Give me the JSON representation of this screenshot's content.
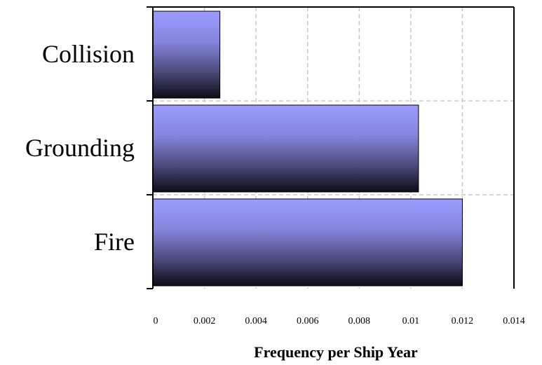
{
  "chart_data": {
    "type": "bar",
    "orientation": "horizontal",
    "categories": [
      "Collision",
      "Grounding",
      "Fire"
    ],
    "values": [
      0.0026,
      0.0103,
      0.012
    ],
    "title": "",
    "xlabel": "Frequency per Ship Year",
    "ylabel": "",
    "xlim": [
      0,
      0.014
    ],
    "x_ticks": [
      0,
      0.002,
      0.004,
      0.006,
      0.008,
      0.01,
      0.012,
      0.014
    ],
    "x_tick_labels": [
      "0",
      "0.002",
      "0.004",
      "0.006",
      "0.008",
      "0.01",
      "0.012",
      "0.014"
    ],
    "grid": true,
    "grid_style": "dashed",
    "legend": "none",
    "colors": {
      "bar_top": "#9c9cff",
      "bar_bottom": "#0c0c16",
      "grid": "#c8c8c8",
      "axis": "#000000"
    }
  }
}
